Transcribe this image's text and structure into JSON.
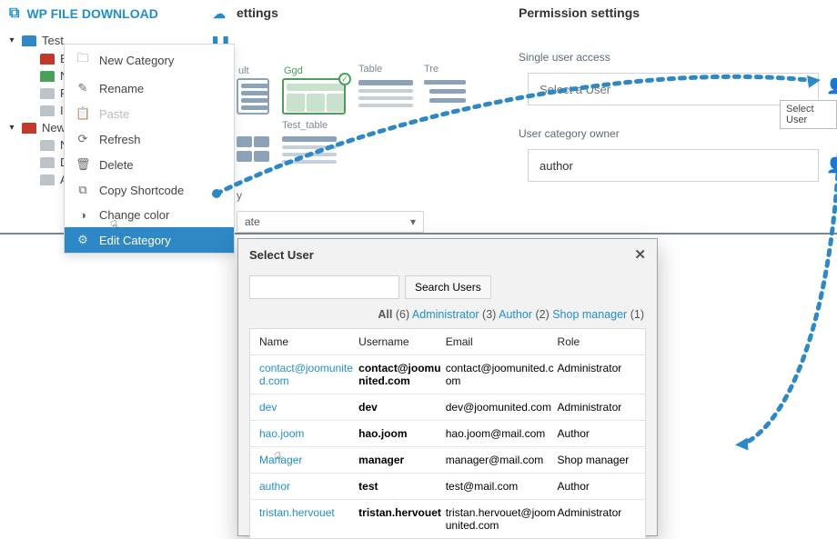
{
  "app": {
    "title": "WP FILE DOWNLOAD"
  },
  "tree": {
    "root": "Test",
    "items": [
      "BM",
      "New",
      "PPI",
      "IMT"
    ],
    "second_root": "New",
    "second_items": [
      "Nc",
      "Des",
      "Ado"
    ]
  },
  "context_menu": {
    "new_category": "New Category",
    "rename": "Rename",
    "paste": "Paste",
    "refresh": "Refresh",
    "delete": "Delete",
    "copy_shortcode": "Copy Shortcode",
    "change_color": "Change color",
    "edit_category": "Edit Category"
  },
  "panels": {
    "settings": "ettings",
    "permission": "Permission settings",
    "single_user": "Single user access",
    "select_user_ph": "Select a User",
    "user_owner": "User category owner",
    "owner_value": "author",
    "tooltip": "Select User",
    "dropdown": "ate",
    "dropdown_sup": "y"
  },
  "thumbs": {
    "t1": "ult",
    "t2": "Ggd",
    "t3": "Table",
    "t4": "Tre",
    "t5": "Test_table"
  },
  "modal": {
    "title": "Select User",
    "search_btn": "Search Users",
    "filter_all": "All",
    "filter_all_n": "(6)",
    "filter_admin": "Administrator",
    "filter_admin_n": "(3)",
    "filter_author": "Author",
    "filter_author_n": "(2)",
    "filter_shop": "Shop manager",
    "filter_shop_n": "(1)",
    "cols": {
      "c1": "Name",
      "c2": "Username",
      "c3": "Email",
      "c4": "Role"
    },
    "rows": [
      {
        "name": "contact@joomunited.com",
        "user": "contact@joomunited.com",
        "email": "contact@joomunited.com",
        "role": "Administrator"
      },
      {
        "name": "dev",
        "user": "dev",
        "email": "dev@joomunited.com",
        "role": "Administrator"
      },
      {
        "name": "hao.joom",
        "user": "hao.joom",
        "email": "hao.joom@mail.com",
        "role": "Author"
      },
      {
        "name": "Manager",
        "user": "manager",
        "email": "manager@mail.com",
        "role": "Shop manager"
      },
      {
        "name": "author",
        "user": "test",
        "email": "test@mail.com",
        "role": "Author"
      },
      {
        "name": "tristan.hervouet",
        "user": "tristan.hervouet",
        "email": "tristan.hervouet@joomunited.com",
        "role": "Administrator"
      }
    ]
  },
  "colors": {
    "accent": "#2d88c5"
  }
}
